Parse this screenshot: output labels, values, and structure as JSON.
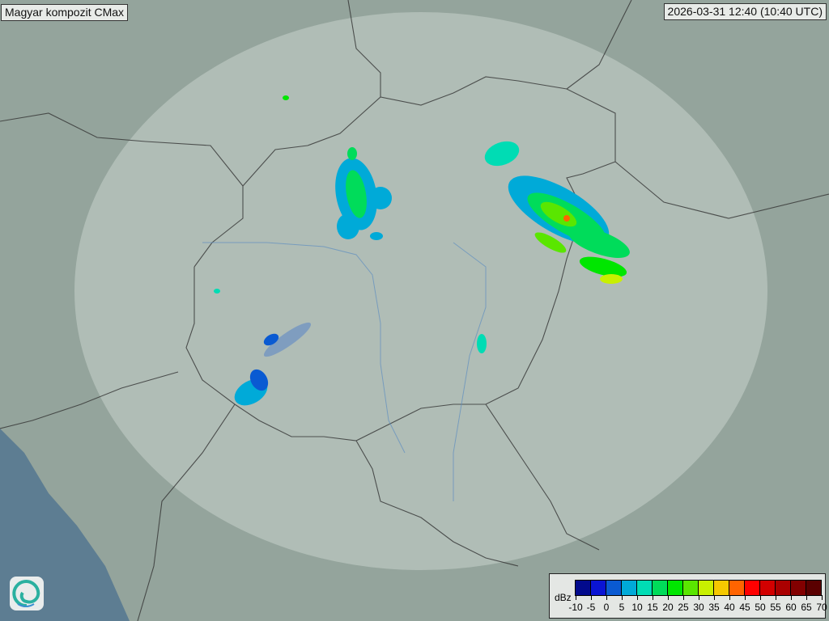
{
  "title": "Magyar kompozit  CMax",
  "timestamp": "2026-03-31 12:40 (10:40 UTC)",
  "legend": {
    "unit": "dBz",
    "ticks": [
      "-10",
      "-5",
      "0",
      "5",
      "10",
      "15",
      "20",
      "25",
      "30",
      "35",
      "40",
      "45",
      "50",
      "55",
      "60",
      "65",
      "70"
    ],
    "colors": [
      "#020a8c",
      "#0a14d4",
      "#0a5ad2",
      "#00aad8",
      "#00dcb4",
      "#00dc5a",
      "#00e600",
      "#5ae600",
      "#c8f000",
      "#f5c800",
      "#ff6400",
      "#ff0000",
      "#d20000",
      "#aa0000",
      "#820000",
      "#5a0000"
    ]
  },
  "logo": {
    "icon": "swirl-logo-icon"
  }
}
